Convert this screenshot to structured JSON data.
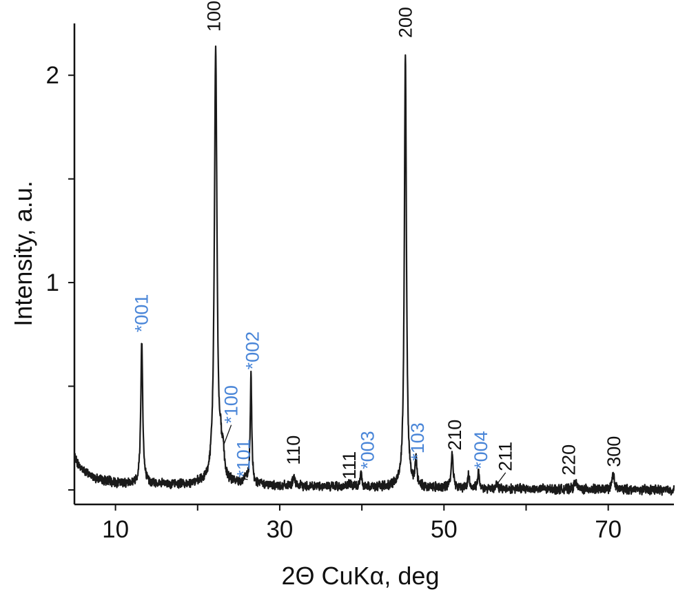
{
  "chart_data": {
    "type": "line",
    "xlabel": "2Θ CuKα, deg",
    "ylabel": "Intensity, a.u.",
    "xlim": [
      5,
      78
    ],
    "ylim": [
      -0.07,
      2.25
    ],
    "x_ticks": [
      10,
      20,
      30,
      40,
      50,
      60,
      70
    ],
    "x_tick_labels": [
      "10",
      "",
      "30",
      "",
      "50",
      "",
      "70"
    ],
    "y_ticks": [
      0,
      0.5,
      1,
      1.5,
      2
    ],
    "y_tick_labels": [
      "",
      "",
      "1",
      "",
      "2"
    ],
    "grid": false,
    "colors": {
      "line": "#1a1a1a",
      "black_label": "#111111",
      "blue_label": "#4a86d8"
    },
    "baseline": [
      [
        5.0,
        0.16
      ],
      [
        5.5,
        0.12
      ],
      [
        6.5,
        0.08
      ],
      [
        8.0,
        0.05
      ],
      [
        10.0,
        0.035
      ],
      [
        13.0,
        0.03
      ],
      [
        18.0,
        0.025
      ],
      [
        21.0,
        0.03
      ],
      [
        25.0,
        0.03
      ],
      [
        30.0,
        0.02
      ],
      [
        40.0,
        0.015
      ],
      [
        50.0,
        0.01
      ],
      [
        60.0,
        0.005
      ],
      [
        78.0,
        0.0
      ]
    ],
    "peaks": [
      {
        "x": 13.2,
        "height": 0.69,
        "width": 0.28
      },
      {
        "x": 22.2,
        "height": 2.09,
        "width": 0.38
      },
      {
        "x": 22.8,
        "height": 0.11,
        "width": 0.3
      },
      {
        "x": 23.1,
        "height": 0.12,
        "width": 0.3
      },
      {
        "x": 25.8,
        "height": 0.03,
        "width": 0.3
      },
      {
        "x": 26.5,
        "height": 0.52,
        "width": 0.22
      },
      {
        "x": 31.7,
        "height": 0.05,
        "width": 0.22
      },
      {
        "x": 38.5,
        "height": 0.015,
        "width": 0.25
      },
      {
        "x": 39.9,
        "height": 0.07,
        "width": 0.22
      },
      {
        "x": 45.3,
        "height": 2.09,
        "width": 0.3
      },
      {
        "x": 46.6,
        "height": 0.13,
        "width": 0.22
      },
      {
        "x": 51.0,
        "height": 0.17,
        "width": 0.28
      },
      {
        "x": 53.0,
        "height": 0.07,
        "width": 0.2
      },
      {
        "x": 54.2,
        "height": 0.08,
        "width": 0.22
      },
      {
        "x": 56.4,
        "height": 0.02,
        "width": 0.25
      },
      {
        "x": 66.0,
        "height": 0.04,
        "width": 0.3
      },
      {
        "x": 70.6,
        "height": 0.08,
        "width": 0.3
      }
    ],
    "annotations": [
      {
        "text": "100",
        "x": 22.0,
        "y": 2.21,
        "color": "black"
      },
      {
        "text": "200",
        "x": 45.3,
        "y": 2.18,
        "color": "black"
      },
      {
        "text": "*001",
        "x": 13.2,
        "y": 0.76,
        "color": "blue"
      },
      {
        "text": "*002",
        "x": 26.7,
        "y": 0.58,
        "color": "blue"
      },
      {
        "text": "*100",
        "x": 24.1,
        "y": 0.32,
        "color": "blue",
        "leader_to": [
          23.2,
          0.22
        ]
      },
      {
        "text": "*101",
        "x": 25.6,
        "y": 0.06,
        "color": "blue",
        "leader_to": [
          26.1,
          0.05
        ]
      },
      {
        "text": "110",
        "x": 31.7,
        "y": 0.12,
        "color": "black"
      },
      {
        "text": "111",
        "x": 38.5,
        "y": 0.05,
        "color": "black",
        "leader_to": [
          38.4,
          0.02
        ]
      },
      {
        "text": "*003",
        "x": 40.7,
        "y": 0.1,
        "color": "blue"
      },
      {
        "text": "*103",
        "x": 46.8,
        "y": 0.14,
        "color": "blue"
      },
      {
        "text": "210",
        "x": 51.3,
        "y": 0.19,
        "color": "black"
      },
      {
        "text": "*004",
        "x": 54.5,
        "y": 0.1,
        "color": "blue"
      },
      {
        "text": "211",
        "x": 57.5,
        "y": 0.09,
        "color": "black",
        "leader_to": [
          56.5,
          0.03
        ]
      },
      {
        "text": "220",
        "x": 65.2,
        "y": 0.07,
        "color": "black"
      },
      {
        "text": "300",
        "x": 70.7,
        "y": 0.11,
        "color": "black"
      }
    ]
  }
}
